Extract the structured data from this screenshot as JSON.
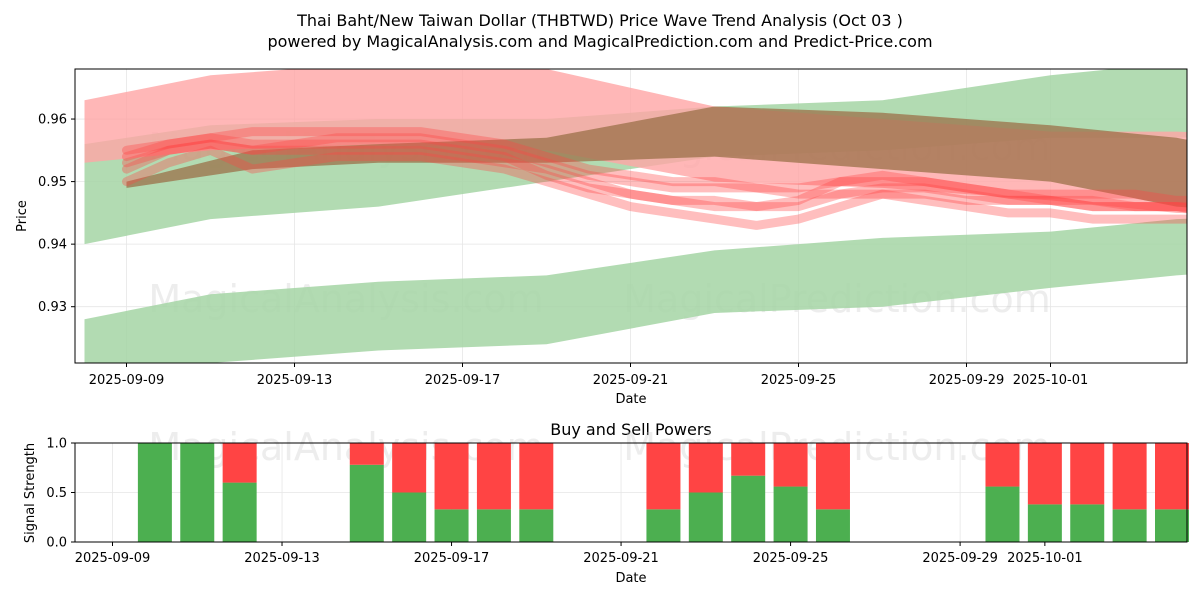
{
  "title_line1": "Thai Baht/New Taiwan Dollar (THBTWD) Price Wave Trend Analysis (Oct 03 )",
  "title_line2": "powered by MagicalAnalysis.com and MagicalPrediction.com and Predict-Price.com",
  "watermarks": [
    "MagicalAnalysis.com",
    "MagicalPrediction.com"
  ],
  "colors": {
    "green": "#4caf50",
    "red": "#ff4444",
    "green_band": "#a5d5a5",
    "red_band": "#ffa5a5",
    "brown": "#9b7048"
  },
  "chart_data": [
    {
      "type": "area",
      "title": "",
      "xlabel": "Date",
      "ylabel": "Price",
      "x_ticks": [
        "2025-09-09",
        "2025-09-13",
        "2025-09-17",
        "2025-09-21",
        "2025-09-25",
        "2025-09-29",
        "2025-10-01"
      ],
      "ylim": [
        0.921,
        0.968
      ],
      "y_ticks": [
        0.93,
        0.94,
        0.95,
        0.96
      ],
      "bands": [
        {
          "name": "green upper channel",
          "color": "green",
          "days": [
            -1,
            2,
            6,
            10,
            14,
            18,
            22,
            25,
            29,
            33
          ],
          "upper": [
            0.956,
            0.959,
            0.96,
            0.96,
            0.962,
            0.963,
            0.967,
            0.969,
            0.97,
            0.968
          ],
          "lower": [
            0.94,
            0.944,
            0.946,
            0.95,
            0.954,
            0.955,
            0.957,
            0.957,
            0.958,
            0.958
          ]
        },
        {
          "name": "green lower channel",
          "color": "green",
          "days": [
            -1,
            2,
            6,
            10,
            14,
            18,
            22,
            25,
            29,
            33
          ],
          "upper": [
            0.928,
            0.932,
            0.934,
            0.935,
            0.939,
            0.941,
            0.942,
            0.944,
            0.945,
            0.95
          ],
          "lower": [
            0.918,
            0.921,
            0.923,
            0.924,
            0.929,
            0.93,
            0.933,
            0.935,
            0.937,
            0.939
          ]
        },
        {
          "name": "red upper channel",
          "color": "red",
          "days": [
            -1,
            2,
            6,
            10,
            14,
            18,
            22,
            25,
            29,
            33
          ],
          "upper": [
            0.963,
            0.967,
            0.969,
            0.968,
            0.962,
            0.96,
            0.958,
            0.958,
            0.957,
            0.949
          ],
          "lower": [
            0.953,
            0.955,
            0.956,
            0.955,
            0.95,
            0.949,
            0.947,
            0.945,
            0.944,
            0.938
          ]
        },
        {
          "name": "brown channel",
          "color": "brown",
          "days": [
            0,
            3,
            6,
            10,
            14,
            18,
            22,
            25,
            29,
            33
          ],
          "upper": [
            0.95,
            0.955,
            0.956,
            0.957,
            0.962,
            0.961,
            0.959,
            0.957,
            0.952,
            0.948
          ],
          "lower": [
            0.949,
            0.952,
            0.953,
            0.953,
            0.954,
            0.952,
            0.95,
            0.946,
            0.944,
            0.938
          ]
        }
      ],
      "price_lines": [
        {
          "days": [
            0,
            1,
            2,
            3,
            4,
            5,
            6,
            7,
            8,
            9,
            10,
            11,
            12,
            13,
            14,
            15,
            16,
            17,
            18,
            19,
            20,
            21,
            22,
            23,
            24,
            25,
            26,
            27,
            28,
            29,
            30,
            31,
            32,
            33
          ],
          "values": [
            0.955,
            0.956,
            0.957,
            0.958,
            0.958,
            0.958,
            0.958,
            0.958,
            0.957,
            0.956,
            0.954,
            0.952,
            0.951,
            0.95,
            0.95,
            0.949,
            0.948,
            0.948,
            0.948,
            0.948,
            0.947,
            0.947,
            0.947,
            0.946,
            0.946,
            0.946,
            0.946,
            0.945,
            0.945,
            0.944,
            0.944,
            0.943,
            0.942,
            0.941
          ]
        },
        {
          "days": [
            0,
            1,
            2,
            3,
            4,
            5,
            6,
            7,
            8,
            9,
            10,
            11,
            12,
            13,
            14,
            15,
            16,
            17,
            18,
            19,
            20,
            21,
            22,
            23,
            24,
            25,
            26,
            27,
            28,
            29,
            30,
            31,
            32,
            33
          ],
          "values": [
            0.952,
            0.955,
            0.956,
            0.955,
            0.955,
            0.955,
            0.955,
            0.955,
            0.954,
            0.953,
            0.952,
            0.95,
            0.948,
            0.947,
            0.946,
            0.946,
            0.947,
            0.95,
            0.951,
            0.95,
            0.949,
            0.948,
            0.948,
            0.948,
            0.948,
            0.947,
            0.947,
            0.946,
            0.945,
            0.944,
            0.946,
            0.948,
            0.944,
            0.94
          ]
        },
        {
          "days": [
            0,
            1,
            2,
            3,
            4,
            5,
            6,
            7,
            8,
            9,
            10,
            11,
            12,
            13,
            14,
            15,
            16,
            17,
            18,
            19,
            20,
            21,
            22,
            23,
            24,
            25,
            26,
            27,
            28,
            29,
            30,
            31,
            32,
            33
          ],
          "values": [
            0.95,
            0.953,
            0.955,
            0.952,
            0.953,
            0.954,
            0.954,
            0.954,
            0.953,
            0.952,
            0.95,
            0.948,
            0.946,
            0.945,
            0.944,
            0.943,
            0.944,
            0.946,
            0.948,
            0.947,
            0.946,
            0.945,
            0.945,
            0.944,
            0.944,
            0.944,
            0.944,
            0.944,
            0.943,
            0.943,
            0.945,
            0.947,
            0.942,
            0.939
          ]
        },
        {
          "days": [
            0,
            1,
            2,
            3,
            4,
            5,
            6,
            7,
            8,
            9,
            10,
            11,
            12,
            13,
            14,
            15,
            16,
            17,
            18,
            19,
            20,
            21,
            22,
            23,
            24,
            25,
            26,
            27,
            28,
            29,
            30,
            31,
            32,
            33
          ],
          "values": [
            0.954,
            0.956,
            0.957,
            0.956,
            0.956,
            0.956,
            0.956,
            0.956,
            0.955,
            0.954,
            0.951,
            0.949,
            0.948,
            0.947,
            0.947,
            0.946,
            0.946,
            0.948,
            0.949,
            0.949,
            0.948,
            0.947,
            0.947,
            0.947,
            0.946,
            0.946,
            0.945,
            0.945,
            0.944,
            0.944,
            0.946,
            0.947,
            0.943,
            0.94
          ]
        },
        {
          "days": [
            0,
            1,
            2,
            3,
            4,
            5,
            6,
            7,
            8,
            9,
            10,
            11,
            12,
            13,
            14,
            15,
            16,
            17,
            18,
            19,
            20,
            21,
            22,
            23,
            24,
            25,
            26,
            27,
            28,
            29,
            30,
            31,
            32,
            33
          ],
          "values": [
            0.953,
            0.955,
            0.956,
            0.955,
            0.956,
            0.957,
            0.957,
            0.957,
            0.956,
            0.955,
            0.953,
            0.951,
            0.95,
            0.949,
            0.949,
            0.949,
            0.949,
            0.95,
            0.95,
            0.95,
            0.949,
            0.948,
            0.947,
            0.946,
            0.946,
            0.946,
            0.945,
            0.944,
            0.944,
            0.943,
            0.944,
            0.945,
            0.942,
            0.939
          ]
        }
      ]
    },
    {
      "type": "bar",
      "title": "Buy and Sell Powers",
      "xlabel": "Date",
      "ylabel": "Signal Strength",
      "x_ticks": [
        "2025-09-09",
        "2025-09-13",
        "2025-09-17",
        "2025-09-21",
        "2025-09-25",
        "2025-09-29",
        "2025-10-01"
      ],
      "ylim": [
        0,
        1.0
      ],
      "y_ticks": [
        "0.0",
        "0.5",
        "1.0"
      ],
      "days": [
        1,
        2,
        3,
        6,
        7,
        8,
        9,
        10,
        13,
        14,
        15,
        16,
        17,
        21,
        22,
        23,
        24,
        25
      ],
      "series": [
        {
          "name": "Buy",
          "color": "green",
          "values": [
            1.0,
            1.0,
            0.6,
            0.78,
            0.5,
            0.33,
            0.33,
            0.33,
            0.33,
            0.5,
            0.67,
            0.56,
            0.33,
            0.56,
            0.38,
            0.38,
            0.33,
            0.33
          ]
        },
        {
          "name": "Sell",
          "color": "red",
          "values": [
            0.0,
            0.0,
            0.4,
            0.22,
            0.5,
            0.67,
            0.67,
            0.67,
            0.67,
            0.5,
            0.33,
            0.44,
            0.67,
            0.44,
            0.62,
            0.62,
            0.67,
            0.67
          ]
        }
      ]
    }
  ]
}
